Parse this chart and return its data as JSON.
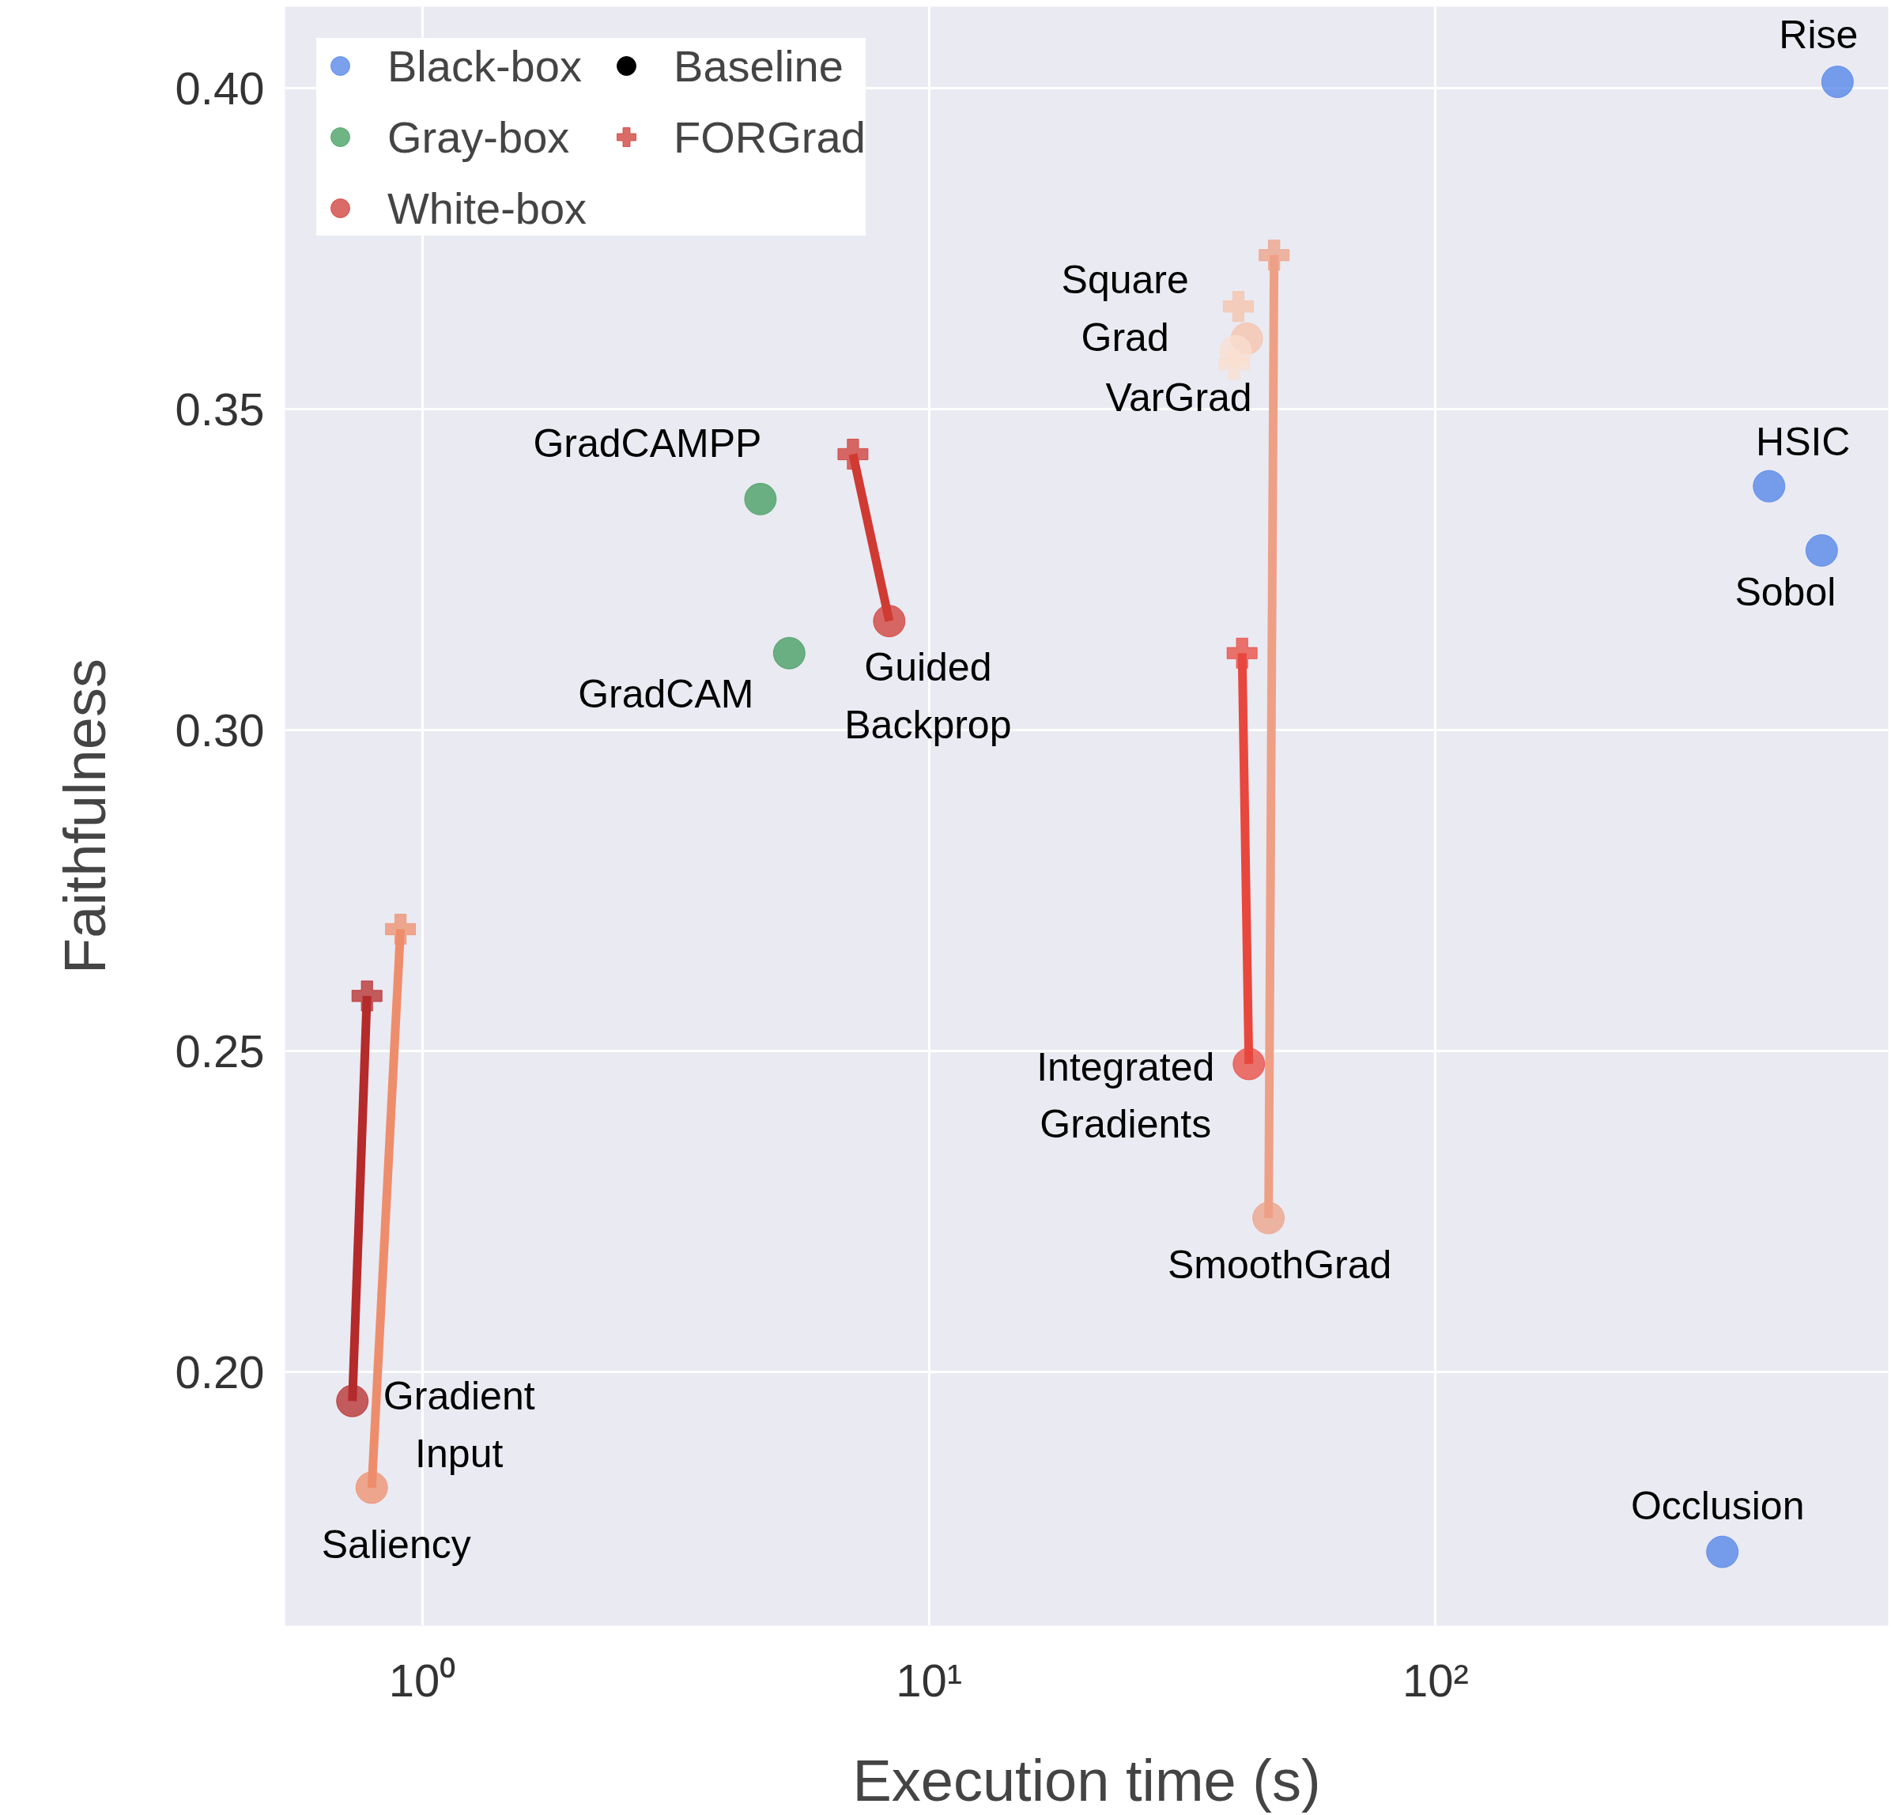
{
  "chart_data": {
    "type": "scatter",
    "xlabel": "Execution time (s)",
    "ylabel": "Faithfulness",
    "log": "x",
    "xlim": [
      0.536,
      782
    ],
    "ylim": [
      0.1605,
      0.4127
    ],
    "xticks": [
      {
        "value": 1,
        "label": "10⁰"
      },
      {
        "value": 10,
        "label": "10¹"
      },
      {
        "value": 100,
        "label": "10²"
      }
    ],
    "yticks": [
      {
        "value": 0.2,
        "label": "0.20"
      },
      {
        "value": 0.25,
        "label": "0.25"
      },
      {
        "value": 0.3,
        "label": "0.30"
      },
      {
        "value": 0.35,
        "label": "0.35"
      },
      {
        "value": 0.4,
        "label": "0.40"
      }
    ],
    "grid": true,
    "legend": "top left",
    "series": [
      {
        "type": "line",
        "marker": "none",
        "color": "#cf3a33",
        "x": [
          8.35,
          7.08
        ],
        "values": [
          0.317,
          0.343
        ]
      },
      {
        "type": "line",
        "marker": "none",
        "color": "#e8473d",
        "x": [
          42.8,
          41.5
        ],
        "values": [
          0.248,
          0.312
        ]
      },
      {
        "type": "line",
        "marker": "none",
        "color": "#eea086",
        "x": [
          46.8,
          48.0
        ],
        "values": [
          0.224,
          0.374
        ]
      },
      {
        "type": "line",
        "marker": "none",
        "color": "#b52a2a",
        "x": [
          0.728,
          0.778
        ],
        "values": [
          0.1955,
          0.2586
        ]
      },
      {
        "type": "line",
        "marker": "none",
        "color": "#ee8d6c",
        "x": [
          0.795,
          0.906
        ],
        "values": [
          0.182,
          0.269
        ]
      },
      {
        "name": "Black-box",
        "marker": "circle",
        "color": "#4e80e8",
        "x": [
          621,
          455,
          578,
          368
        ],
        "values": [
          0.401,
          0.338,
          0.328,
          0.172
        ]
      },
      {
        "name": "Gray-box",
        "marker": "circle",
        "color": "#3f9b5c",
        "x": [
          4.65,
          5.3
        ],
        "values": [
          0.336,
          0.312
        ]
      },
      {
        "name": "White-box",
        "marker": "circle",
        "color": "#d9503f",
        "x": [
          8.35,
          42.8,
          46.8,
          42.4,
          40.3,
          0.728,
          0.795
        ],
        "values": [
          0.317,
          0.248,
          0.224,
          0.361,
          0.359,
          0.1955,
          0.182
        ],
        "colors": [
          "#cf3a33",
          "#e8473d",
          "#eea086",
          "#f5c2a8",
          "#f9dfcf",
          "#b52a2a",
          "#ee8d6c"
        ]
      },
      {
        "name": "Baseline",
        "marker": "circle",
        "color": "#000000"
      },
      {
        "name": "FORGrad",
        "marker": "cross",
        "color": "#000000",
        "x": [
          7.08,
          41.5,
          48.0,
          40.8,
          40.0,
          0.778,
          0.906
        ],
        "values": [
          0.343,
          0.312,
          0.374,
          0.366,
          0.357,
          0.2586,
          0.269
        ],
        "colors": [
          "#cf3a33",
          "#e8473d",
          "#eea086",
          "#f5c2a8",
          "#f9dfcf",
          "#b52a2a",
          "#ee8d6c"
        ]
      }
    ],
    "annotations": [
      {
        "text": "Rise",
        "x": 621,
        "y": 0.401
      },
      {
        "text": "HSIC",
        "x": 455,
        "y": 0.338
      },
      {
        "text": "Sobol",
        "x": 578,
        "y": 0.328
      },
      {
        "text": "Occlusion",
        "x": 368,
        "y": 0.172
      },
      {
        "text": "GradCAMPP",
        "x": 4.65,
        "y": 0.336
      },
      {
        "text": "GradCAM",
        "x": 5.3,
        "y": 0.312
      },
      {
        "text": "Guided\nBackprop",
        "x": 8.35,
        "y": 0.317
      },
      {
        "text": "Integrated\nGradients",
        "x": 42.8,
        "y": 0.248
      },
      {
        "text": "SmoothGrad",
        "x": 46.8,
        "y": 0.224
      },
      {
        "text": "Square\nGrad",
        "x": 42.4,
        "y": 0.361
      },
      {
        "text": "VarGrad",
        "x": 40.3,
        "y": 0.359
      },
      {
        "text": "Gradient\nInput",
        "x": 0.728,
        "y": 0.1955
      },
      {
        "text": "Saliency",
        "x": 0.795,
        "y": 0.182
      }
    ]
  }
}
